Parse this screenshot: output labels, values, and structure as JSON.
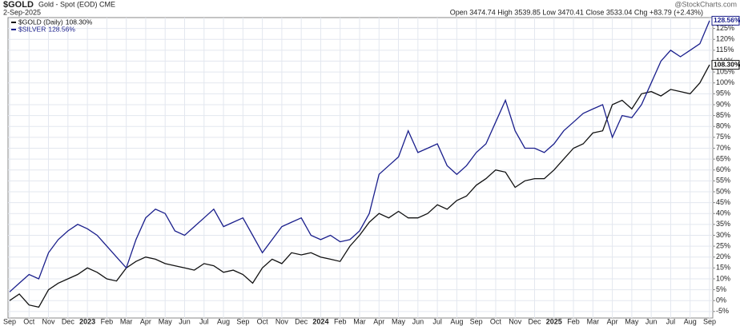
{
  "chart_data": {
    "type": "line",
    "title": "$GOLD",
    "subtitle": "Gold - Spot (EOD) CME",
    "date": "2-Sep-2025",
    "quote": "Open 3474.74 High 3539.85 Low 3470.41 Close 3533.04 Chg +83.79 (+2.43%)",
    "watermark": "@StockCharts.com",
    "categories": [
      "Sep",
      null,
      "Oct",
      null,
      "Nov",
      null,
      "Dec",
      null,
      "2023",
      null,
      "Feb",
      null,
      "Mar",
      null,
      "Apr",
      null,
      "May",
      null,
      "Jun",
      null,
      "Jul",
      null,
      "Aug",
      null,
      "Sep",
      null,
      "Oct",
      null,
      "Nov",
      null,
      "Dec",
      null,
      "2024",
      null,
      "Feb",
      null,
      "Mar",
      null,
      "Apr",
      null,
      "May",
      null,
      "Jun",
      null,
      "Jul",
      null,
      "Aug",
      null,
      "Sep",
      null,
      "Oct",
      null,
      "Nov",
      null,
      "Dec",
      null,
      "2025",
      null,
      "Feb",
      null,
      "Mar",
      null,
      "Apr",
      null,
      "May",
      null,
      "Jun",
      null,
      "Jul",
      null,
      "Aug",
      null,
      "Sep"
    ],
    "series": [
      {
        "name": "$GOLD (Daily)",
        "end_label": "108.30%",
        "color": "#111111",
        "values": [
          0,
          3,
          -2,
          -3,
          5,
          8,
          10,
          12,
          15,
          13,
          10,
          9,
          15,
          18,
          20,
          19,
          17,
          16,
          15,
          14,
          17,
          16,
          13,
          14,
          12,
          8,
          15,
          19,
          17,
          22,
          21,
          22,
          20,
          19,
          18,
          25,
          30,
          36,
          40,
          38,
          41,
          38,
          38,
          40,
          44,
          42,
          46,
          48,
          53,
          56,
          60,
          59,
          52,
          55,
          56,
          56,
          60,
          65,
          70,
          72,
          77,
          78,
          90,
          92,
          88,
          95,
          96,
          94,
          97,
          96,
          95,
          100,
          108.3
        ]
      },
      {
        "name": "$SILVER",
        "end_label": "128.56%",
        "color": "#1a1f8c",
        "values": [
          4,
          8,
          12,
          10,
          22,
          28,
          32,
          35,
          33,
          30,
          25,
          20,
          15,
          28,
          38,
          42,
          40,
          32,
          30,
          34,
          38,
          42,
          34,
          36,
          38,
          30,
          22,
          28,
          34,
          36,
          38,
          30,
          28,
          30,
          27,
          28,
          32,
          40,
          58,
          62,
          66,
          78,
          68,
          70,
          72,
          62,
          58,
          62,
          68,
          72,
          82,
          92,
          78,
          70,
          70,
          68,
          72,
          78,
          82,
          86,
          88,
          90,
          75,
          85,
          84,
          90,
          100,
          110,
          115,
          112,
          115,
          118,
          128.56
        ]
      }
    ],
    "ylim": [
      -8,
      130
    ],
    "yticks": [
      {
        "value": -5,
        "label": "-5%"
      },
      {
        "value": 0,
        "label": "0%"
      },
      {
        "value": 5,
        "label": "5%"
      },
      {
        "value": 10,
        "label": "10%"
      },
      {
        "value": 15,
        "label": "15%"
      },
      {
        "value": 20,
        "label": "20%"
      },
      {
        "value": 25,
        "label": "25%"
      },
      {
        "value": 30,
        "label": "30%"
      },
      {
        "value": 35,
        "label": "35%"
      },
      {
        "value": 40,
        "label": "40%"
      },
      {
        "value": 45,
        "label": "45%"
      },
      {
        "value": 50,
        "label": "50%"
      },
      {
        "value": 55,
        "label": "55%"
      },
      {
        "value": 60,
        "label": "60%"
      },
      {
        "value": 65,
        "label": "65%"
      },
      {
        "value": 70,
        "label": "70%"
      },
      {
        "value": 75,
        "label": "75%"
      },
      {
        "value": 80,
        "label": "80%"
      },
      {
        "value": 85,
        "label": "85%"
      },
      {
        "value": 90,
        "label": "90%"
      },
      {
        "value": 95,
        "label": "95%"
      },
      {
        "value": 100,
        "label": "100%"
      },
      {
        "value": 105,
        "label": "105%"
      },
      {
        "value": 110,
        "label": "110%"
      },
      {
        "value": 115,
        "label": "115%"
      },
      {
        "value": 120,
        "label": "120%"
      },
      {
        "value": 125,
        "label": "125%"
      }
    ],
    "grid": true
  }
}
